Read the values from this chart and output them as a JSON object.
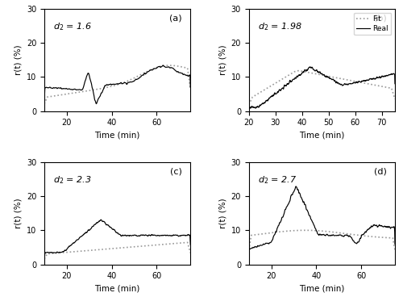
{
  "panels": [
    {
      "label": "(a)",
      "d2_text": "$d_2$ = 1.6",
      "xlim": [
        10,
        75
      ],
      "xticks": [
        20,
        40,
        60
      ],
      "ylim": [
        0,
        30
      ],
      "yticks": [
        0,
        10,
        20,
        30
      ]
    },
    {
      "label": "(b)",
      "d2_text": "$d_2$ = 1.98",
      "xlim": [
        20,
        75
      ],
      "xticks": [
        20,
        30,
        40,
        50,
        60,
        70
      ],
      "ylim": [
        0,
        30
      ],
      "yticks": [
        0,
        10,
        20,
        30
      ],
      "legend": true
    },
    {
      "label": "(c)",
      "d2_text": "$d_2$ = 2.3",
      "xlim": [
        10,
        75
      ],
      "xticks": [
        20,
        40,
        60
      ],
      "ylim": [
        0,
        30
      ],
      "yticks": [
        0,
        10,
        20,
        30
      ]
    },
    {
      "label": "(d)",
      "d2_text": "$d_2$ = 2.7",
      "xlim": [
        10,
        75
      ],
      "xticks": [
        20,
        40,
        60
      ],
      "ylim": [
        0,
        30
      ],
      "yticks": [
        0,
        10,
        20,
        30
      ]
    }
  ],
  "real_color": "#000000",
  "fit_color": "#999999",
  "ylabel": "r(t) (%)",
  "xlabel": "Time (min)"
}
